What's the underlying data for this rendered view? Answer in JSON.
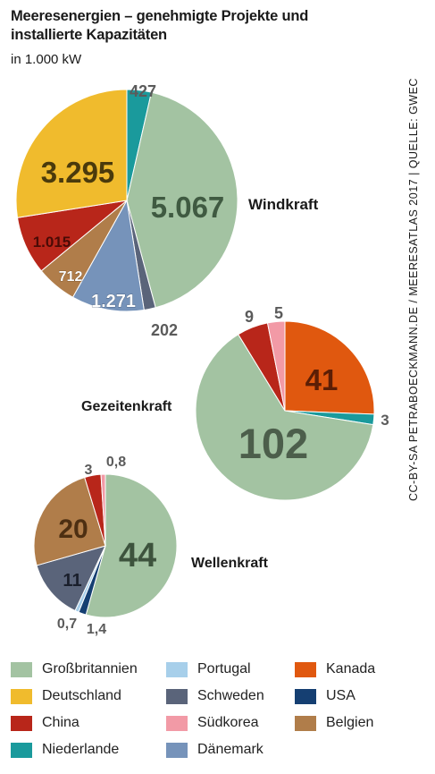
{
  "header": {
    "title": "Meeresenergien – genehmigte Projekte und installierte Kapazitäten",
    "unit": "in 1.000 kW"
  },
  "source": "CC-BY-SA PETRABOECKMANN.DE / MEERESATLAS 2017 | QUELLE: GWEC",
  "colors": {
    "Großbritannien": "#a3c3a2",
    "Deutschland": "#f0bb2d",
    "China": "#b8261a",
    "Niederlande": "#1a9a9c",
    "Portugal": "#a7cfea",
    "Schweden": "#5a647a",
    "Südkorea": "#f29aa6",
    "Dänemark": "#7693ba",
    "Kanada": "#e0580f",
    "USA": "#153f72",
    "Belgien": "#b07d4a"
  },
  "legend": [
    "Großbritannien",
    "Deutschland",
    "China",
    "Niederlande",
    "Portugal",
    "Schweden",
    "Südkorea",
    "Dänemark",
    "Kanada",
    "USA",
    "Belgien"
  ],
  "chart_data": [
    {
      "type": "pie",
      "title": "Windkraft",
      "slices": [
        {
          "label": "Niederlande",
          "value": 427,
          "display": "427"
        },
        {
          "label": "Großbritannien",
          "value": 5067,
          "display": "5.067"
        },
        {
          "label": "Schweden",
          "value": 202,
          "display": "202"
        },
        {
          "label": "Dänemark",
          "value": 1271,
          "display": "1.271"
        },
        {
          "label": "Belgien",
          "value": 712,
          "display": "712"
        },
        {
          "label": "China",
          "value": 1015,
          "display": "1.015"
        },
        {
          "label": "Deutschland",
          "value": 3295,
          "display": "3.295"
        }
      ]
    },
    {
      "type": "pie",
      "title": "Gezeitenkraft",
      "slices": [
        {
          "label": "Kanada",
          "value": 41,
          "display": "41"
        },
        {
          "label": "Niederlande",
          "value": 3,
          "display": "3"
        },
        {
          "label": "Großbritannien",
          "value": 102,
          "display": "102"
        },
        {
          "label": "China",
          "value": 9,
          "display": "9"
        },
        {
          "label": "Südkorea",
          "value": 5,
          "display": "5"
        }
      ]
    },
    {
      "type": "pie",
      "title": "Wellenkraft",
      "slices": [
        {
          "label": "Großbritannien",
          "value": 44,
          "display": "44"
        },
        {
          "label": "USA",
          "value": 1.4,
          "display": "1,4"
        },
        {
          "label": "Portugal",
          "value": 0.7,
          "display": "0,7"
        },
        {
          "label": "Schweden",
          "value": 11,
          "display": "11"
        },
        {
          "label": "Belgien",
          "value": 20,
          "display": "20"
        },
        {
          "label": "China",
          "value": 3,
          "display": "3"
        },
        {
          "label": "Südkorea",
          "value": 0.8,
          "display": "0,8"
        }
      ]
    }
  ]
}
